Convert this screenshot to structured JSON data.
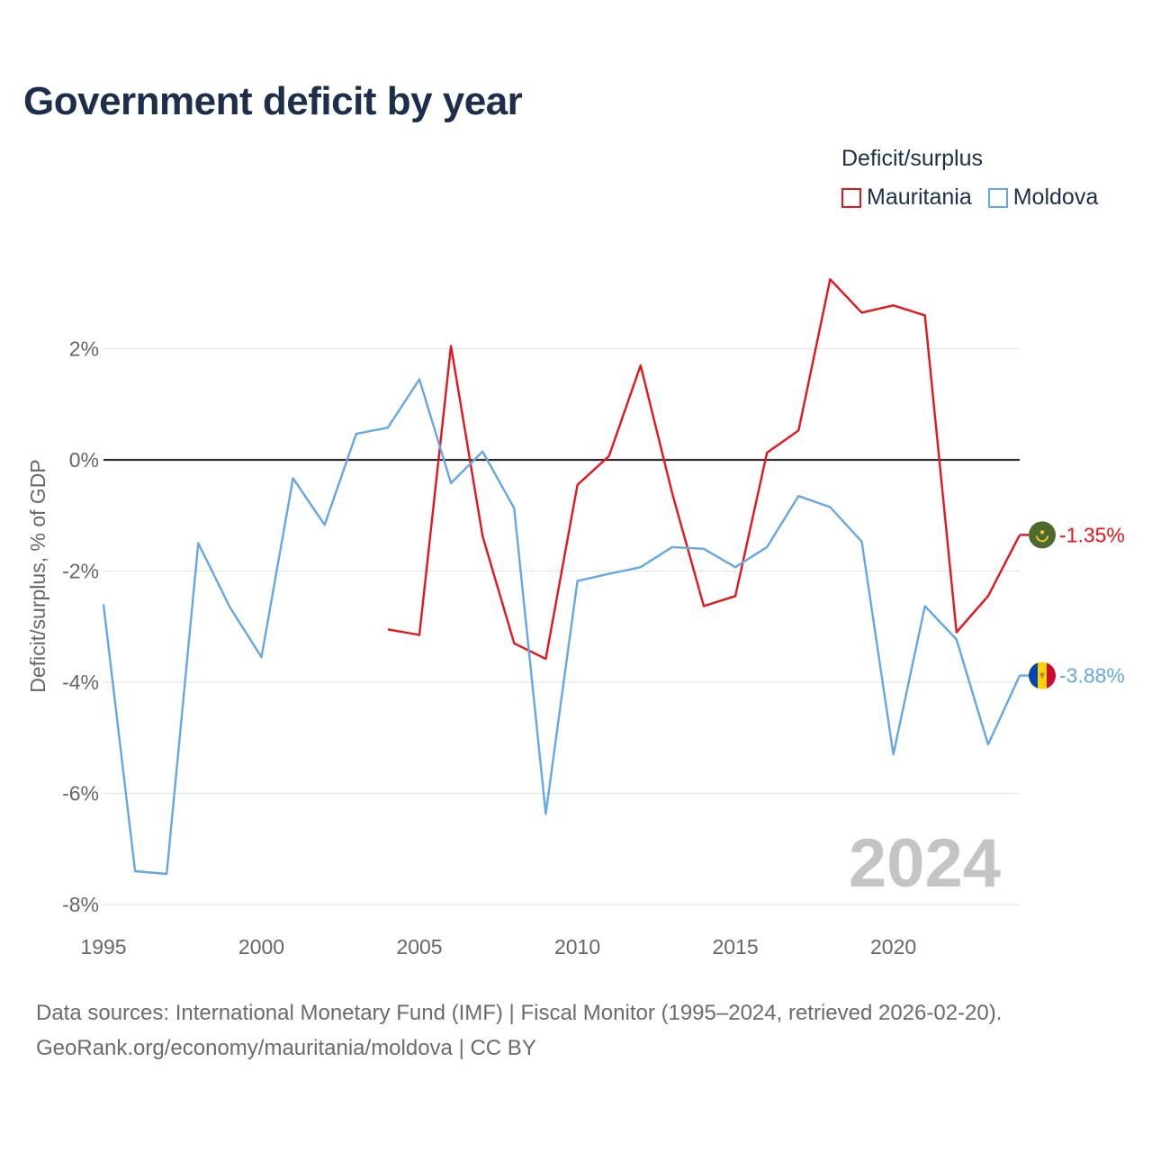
{
  "title": "Government deficit by year",
  "legend": {
    "title": "Deficit/surplus",
    "items": [
      {
        "label": "Mauritania",
        "color": "#e8141a"
      },
      {
        "label": "Moldova",
        "color": "#64a7e6"
      }
    ]
  },
  "footer": {
    "line1": "Data sources: International Monetary Fund (IMF) | Fiscal Monitor (1995–2024, retrieved 2026-02-20).",
    "line2": "GeoRank.org/economy/mauritania/moldova | CC BY"
  },
  "chart_data": {
    "type": "line",
    "title": "Government deficit by year",
    "xlabel": "",
    "ylabel": "Deficit/surplus, % of GDP",
    "xlim": [
      1995,
      2024
    ],
    "ylim": [
      -8,
      3.5
    ],
    "yticks": [
      2,
      0,
      -2,
      -4,
      -6,
      -8
    ],
    "ytick_labels": [
      "2%",
      "0%",
      "-2%",
      "-4%",
      "-6%",
      "-8%"
    ],
    "xticks": [
      1995,
      2000,
      2005,
      2010,
      2015,
      2020
    ],
    "xtick_labels": [
      "1995",
      "2000",
      "2005",
      "2010",
      "2015",
      "2020"
    ],
    "year_watermark": "2024",
    "zero_line": true,
    "series": [
      {
        "name": "Mauritania",
        "color": "#e8141a",
        "end_label": "-1.35%",
        "flag": "mauritania-flag-icon",
        "x": [
          2004,
          2005,
          2006,
          2007,
          2008,
          2009,
          2010,
          2011,
          2012,
          2013,
          2014,
          2015,
          2016,
          2017,
          2018,
          2019,
          2020,
          2021,
          2022,
          2023,
          2024
        ],
        "values": [
          -3.05,
          -3.15,
          2.05,
          -1.37,
          -3.3,
          -3.58,
          -0.45,
          0.07,
          1.7,
          -0.6,
          -2.63,
          -2.45,
          0.13,
          0.53,
          3.25,
          2.65,
          2.78,
          2.6,
          -3.1,
          -2.45,
          -1.35
        ]
      },
      {
        "name": "Moldova",
        "color": "#64a7e6",
        "end_label": "-3.88%",
        "flag": "moldova-flag-icon",
        "x": [
          1995,
          1996,
          1997,
          1998,
          1999,
          2000,
          2001,
          2002,
          2003,
          2004,
          2005,
          2006,
          2007,
          2008,
          2009,
          2010,
          2011,
          2012,
          2013,
          2014,
          2015,
          2016,
          2017,
          2018,
          2019,
          2020,
          2021,
          2022,
          2023,
          2024
        ],
        "values": [
          -2.6,
          -7.4,
          -7.45,
          -1.5,
          -2.65,
          -3.55,
          -0.33,
          -1.17,
          0.47,
          0.58,
          1.45,
          -0.42,
          0.15,
          -0.87,
          -6.37,
          -2.18,
          -2.05,
          -1.93,
          -1.57,
          -1.6,
          -1.93,
          -1.57,
          -0.65,
          -0.85,
          -1.47,
          -5.3,
          -2.63,
          -3.23,
          -5.12,
          -3.88
        ]
      }
    ]
  }
}
